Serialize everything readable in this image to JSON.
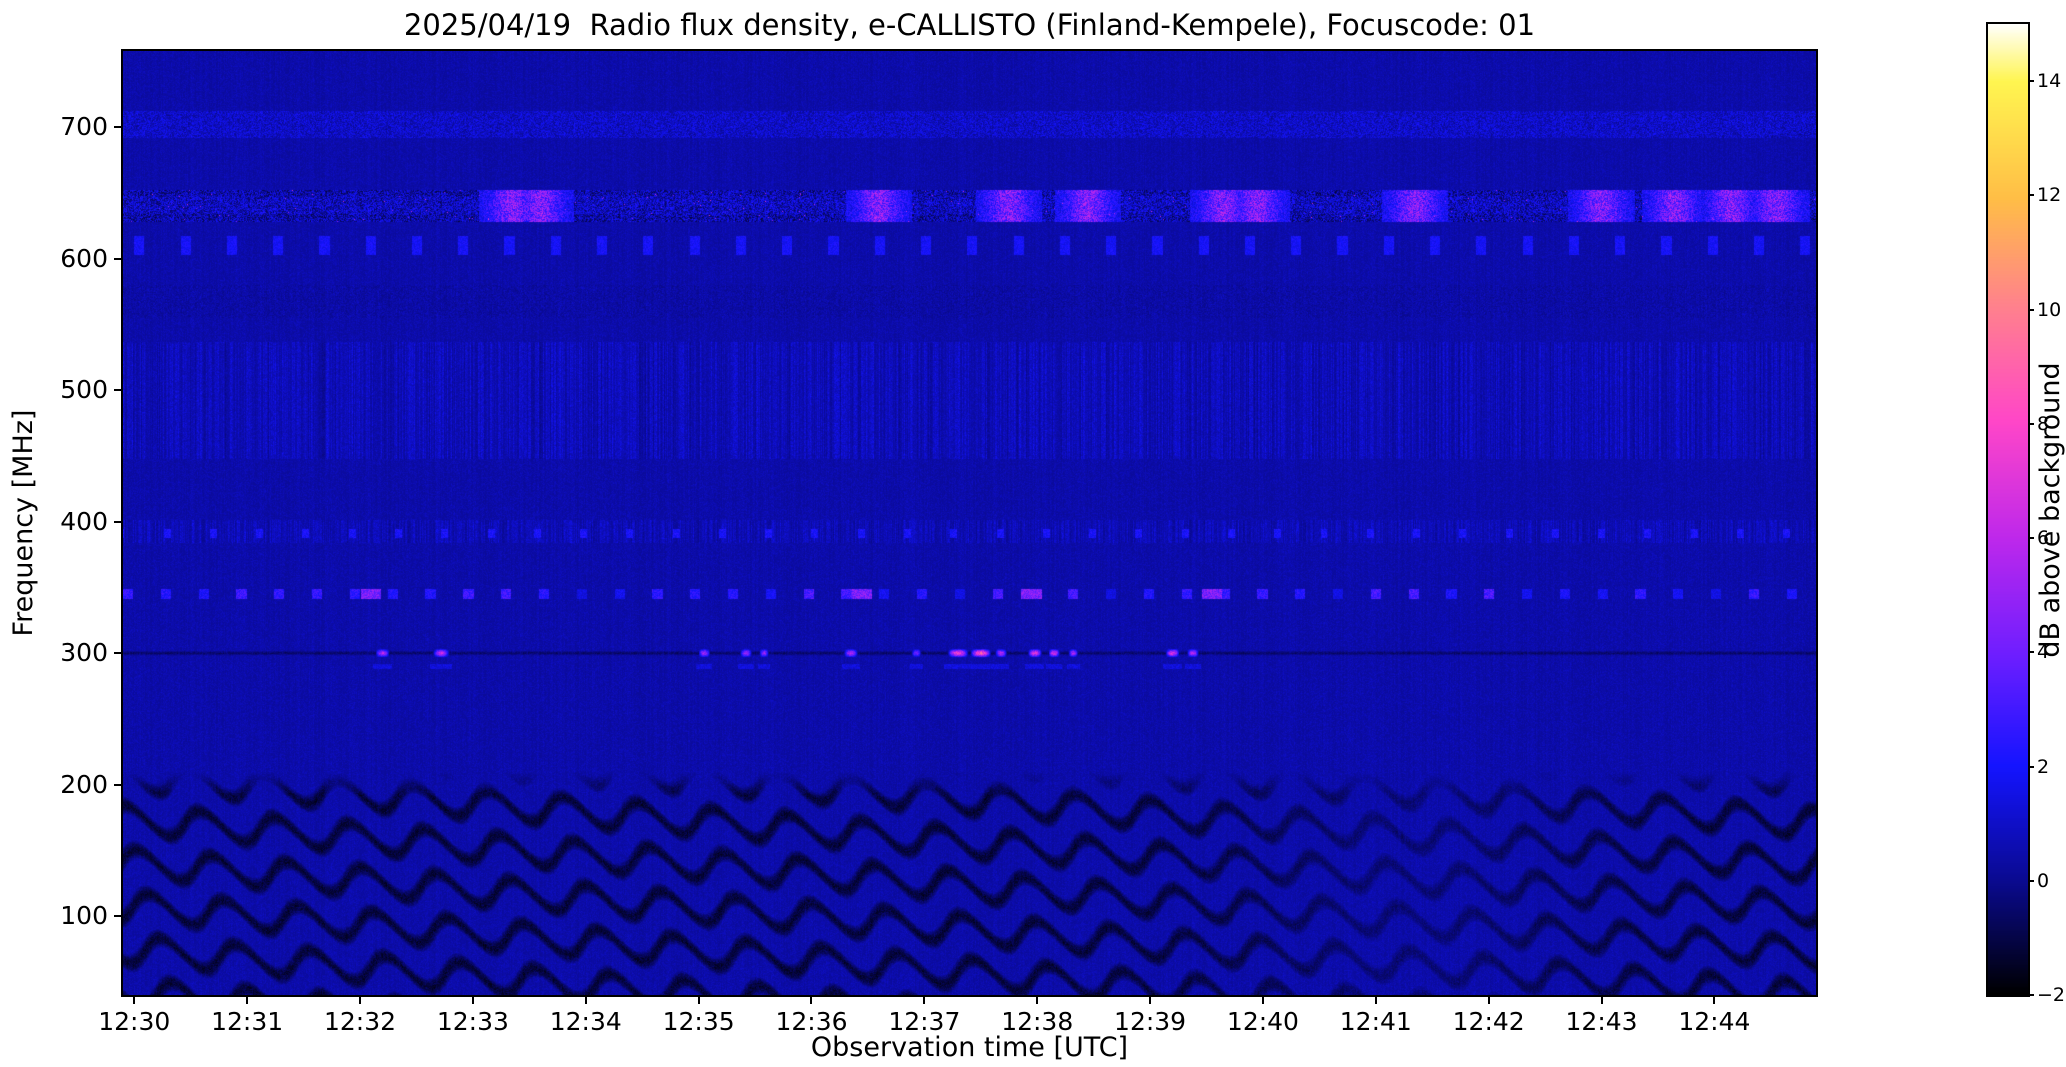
{
  "chart_data": {
    "type": "heatmap",
    "title": "2025/04/19  Radio flux density, e-CALLISTO (Finland-Kempele), Focuscode: 01",
    "xlabel": "Observation time [UTC]",
    "ylabel": "Frequency [MHz]",
    "colorbar_label": "dB above background",
    "x_ticks": [
      "12:30",
      "12:31",
      "12:32",
      "12:33",
      "12:34",
      "12:35",
      "12:36",
      "12:37",
      "12:38",
      "12:39",
      "12:40",
      "12:41",
      "12:42",
      "12:43",
      "12:44"
    ],
    "x_tick_minutes": [
      0,
      1,
      2,
      3,
      4,
      5,
      6,
      7,
      8,
      9,
      10,
      11,
      12,
      13,
      14
    ],
    "x_range_minutes": [
      -0.1,
      14.9
    ],
    "y_ticks": [
      700,
      600,
      500,
      400,
      300,
      200,
      100
    ],
    "y_range_mhz": [
      40,
      758
    ],
    "colorbar_tick_values": [
      14,
      12,
      10,
      8,
      6,
      4,
      2,
      0,
      -2
    ],
    "colorbar_tick_labels": [
      "14",
      "12",
      "10",
      "8",
      "6",
      "4",
      "2",
      "0",
      "−2"
    ],
    "value_range_db": [
      -2,
      15
    ],
    "grid": false,
    "legend": "colorbar-right",
    "colormap_stops": [
      [
        0.0,
        0,
        0,
        0
      ],
      [
        0.118,
        10,
        10,
        145
      ],
      [
        0.235,
        20,
        20,
        255
      ],
      [
        0.35,
        110,
        30,
        255
      ],
      [
        0.47,
        190,
        40,
        235
      ],
      [
        0.59,
        255,
        70,
        200
      ],
      [
        0.71,
        255,
        130,
        140
      ],
      [
        0.82,
        255,
        190,
        70
      ],
      [
        0.94,
        255,
        245,
        80
      ],
      [
        1.0,
        255,
        255,
        255
      ]
    ],
    "features": {
      "background_db": 0.45,
      "noise_band_700": {
        "f_min": 692,
        "f_max": 712,
        "strength": 1.0
      },
      "rfi_band_640": {
        "f_min": 628,
        "f_max": 652,
        "core_min": 634,
        "core_max": 648,
        "strength": 1.5,
        "bright_patch_minutes": [
          3.35,
          3.6,
          6.6,
          7.75,
          8.45,
          9.65,
          9.95,
          11.35,
          13.0,
          13.65,
          14.15,
          14.55
        ]
      },
      "periodic_blocks_610": {
        "f_min": 603,
        "f_max": 617,
        "period_min": 0.41,
        "duty": 0.22,
        "amp_db": 2.0
      },
      "smudge_band_565": {
        "f_min": 555,
        "f_max": 580,
        "strength": 0.35
      },
      "striping_band_490": {
        "f_min": 448,
        "f_max": 537,
        "strength": 0.9
      },
      "striping_band_390": {
        "f_min": 384,
        "f_max": 401,
        "strength": 0.8
      },
      "periodic_dots_390": {
        "f_center": 391,
        "half_width": 3.5,
        "period_min": 0.41,
        "duty": 0.15,
        "amp_db": 2.0
      },
      "periodic_dashes_345": {
        "f_center": 345,
        "half_width": 3.5,
        "period_min": 0.335,
        "duty": 0.27,
        "amp_db": 2.6,
        "bright_minutes": [
          2.1,
          6.45,
          7.95,
          9.55
        ]
      },
      "line_300": {
        "f_center": 300,
        "half_width": 2,
        "depth_db": 1.4
      },
      "bursts_300": {
        "f_center": 300,
        "half_width": 3.5,
        "events": [
          {
            "t": 2.2,
            "w": 0.06,
            "amp": 7.0
          },
          {
            "t": 2.72,
            "w": 0.07,
            "amp": 7.5
          },
          {
            "t": 5.05,
            "w": 0.05,
            "amp": 6.5
          },
          {
            "t": 5.42,
            "w": 0.05,
            "amp": 6.5
          },
          {
            "t": 5.58,
            "w": 0.04,
            "amp": 6.0
          },
          {
            "t": 6.35,
            "w": 0.06,
            "amp": 7.0
          },
          {
            "t": 6.93,
            "w": 0.04,
            "amp": 5.5
          },
          {
            "t": 7.3,
            "w": 0.09,
            "amp": 9.5
          },
          {
            "t": 7.5,
            "w": 0.09,
            "amp": 10.5
          },
          {
            "t": 7.68,
            "w": 0.05,
            "amp": 7.0
          },
          {
            "t": 7.98,
            "w": 0.06,
            "amp": 8.5
          },
          {
            "t": 8.15,
            "w": 0.05,
            "amp": 8.0
          },
          {
            "t": 8.32,
            "w": 0.04,
            "amp": 6.5
          },
          {
            "t": 9.2,
            "w": 0.06,
            "amp": 8.5
          },
          {
            "t": 9.38,
            "w": 0.05,
            "amp": 7.0
          }
        ]
      },
      "companion_290": {
        "f_center": 290,
        "half_width": 2,
        "amp_db": 1.5
      },
      "ripples_low_freq": {
        "f_max": 210,
        "wave_period_min": 0.65,
        "row_spacing_mhz": 33,
        "wobble_mhz": 10.5,
        "depth_db": 1.9,
        "calm_center_min": 11.3
      }
    }
  }
}
